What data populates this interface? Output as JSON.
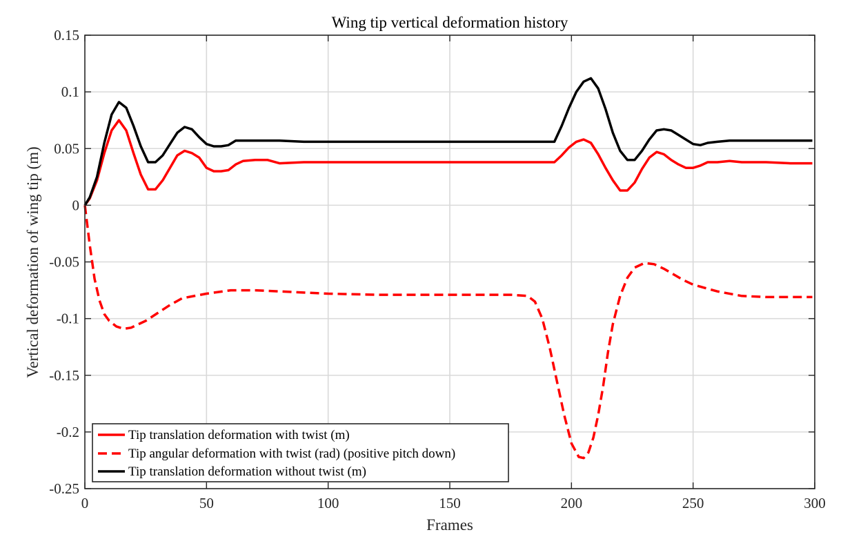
{
  "chart_data": {
    "type": "line",
    "title": "Wing tip vertical deformation history",
    "xlabel": "Frames",
    "ylabel": "Vertical deformation of wing tip (m)",
    "xlim": [
      0,
      300
    ],
    "ylim": [
      -0.25,
      0.15
    ],
    "xticks": [
      0,
      50,
      100,
      150,
      200,
      250,
      300
    ],
    "xtick_labels": [
      "0",
      "50",
      "100",
      "150",
      "200",
      "250",
      "300"
    ],
    "yticks": [
      0.15,
      0.1,
      0.05,
      0,
      -0.05,
      -0.1,
      -0.15,
      -0.2,
      -0.25
    ],
    "ytick_labels": [
      "0.15",
      "0.1",
      "0.05",
      "0",
      "-0.05",
      "-0.1",
      "-0.15",
      "-0.2",
      "-0.25"
    ],
    "grid": true,
    "legend_position": "bottom-left",
    "series": [
      {
        "name": "Tip translation deformation with twist (m)",
        "color": "#ff0000",
        "style": "solid",
        "x": [
          0,
          2,
          5,
          8,
          11,
          14,
          17,
          20,
          23,
          26,
          29,
          32,
          35,
          38,
          41,
          44,
          47,
          50,
          53,
          56,
          59,
          62,
          65,
          70,
          75,
          80,
          90,
          100,
          120,
          150,
          180,
          193,
          196,
          199,
          202,
          205,
          208,
          211,
          214,
          217,
          220,
          223,
          226,
          229,
          232,
          235,
          238,
          241,
          244,
          247,
          250,
          253,
          256,
          260,
          265,
          270,
          280,
          290,
          299
        ],
        "y": [
          0,
          0.006,
          0.022,
          0.046,
          0.066,
          0.075,
          0.066,
          0.046,
          0.027,
          0.014,
          0.014,
          0.022,
          0.033,
          0.044,
          0.048,
          0.046,
          0.042,
          0.033,
          0.03,
          0.03,
          0.031,
          0.036,
          0.039,
          0.04,
          0.04,
          0.037,
          0.038,
          0.038,
          0.038,
          0.038,
          0.038,
          0.038,
          0.044,
          0.051,
          0.056,
          0.058,
          0.055,
          0.045,
          0.033,
          0.022,
          0.013,
          0.013,
          0.02,
          0.032,
          0.042,
          0.047,
          0.045,
          0.04,
          0.036,
          0.033,
          0.033,
          0.035,
          0.038,
          0.038,
          0.039,
          0.038,
          0.038,
          0.037,
          0.037
        ]
      },
      {
        "name": "Tip angular deformation with twist (rad) (positive pitch down)",
        "color": "#ff0000",
        "style": "dashed",
        "x": [
          0,
          2,
          4,
          6,
          8,
          10,
          13,
          16,
          19,
          22,
          25,
          30,
          35,
          40,
          50,
          60,
          70,
          80,
          100,
          120,
          150,
          175,
          182,
          185,
          188,
          191,
          194,
          197,
          200,
          203,
          205,
          207,
          209,
          211,
          213,
          215,
          217,
          220,
          223,
          226,
          230,
          234,
          238,
          242,
          246,
          250,
          260,
          270,
          280,
          290,
          299
        ],
        "y": [
          0,
          -0.035,
          -0.065,
          -0.084,
          -0.096,
          -0.102,
          -0.107,
          -0.109,
          -0.108,
          -0.105,
          -0.102,
          -0.095,
          -0.088,
          -0.082,
          -0.078,
          -0.075,
          -0.075,
          -0.076,
          -0.078,
          -0.079,
          -0.079,
          -0.079,
          -0.08,
          -0.085,
          -0.1,
          -0.125,
          -0.155,
          -0.185,
          -0.21,
          -0.222,
          -0.223,
          -0.218,
          -0.205,
          -0.185,
          -0.16,
          -0.13,
          -0.105,
          -0.08,
          -0.064,
          -0.055,
          -0.051,
          -0.052,
          -0.056,
          -0.061,
          -0.066,
          -0.07,
          -0.076,
          -0.08,
          -0.081,
          -0.081,
          -0.081
        ]
      },
      {
        "name": "Tip translation deformation without twist (m)",
        "color": "#000000",
        "style": "solid",
        "x": [
          0,
          2,
          5,
          8,
          11,
          14,
          17,
          20,
          23,
          26,
          29,
          32,
          35,
          38,
          41,
          44,
          47,
          50,
          53,
          56,
          59,
          62,
          65,
          70,
          75,
          80,
          90,
          100,
          120,
          150,
          180,
          193,
          196,
          199,
          202,
          205,
          208,
          211,
          214,
          217,
          220,
          223,
          226,
          229,
          232,
          235,
          238,
          241,
          244,
          247,
          250,
          253,
          256,
          260,
          265,
          270,
          280,
          290,
          299
        ],
        "y": [
          0,
          0.007,
          0.025,
          0.055,
          0.08,
          0.091,
          0.086,
          0.07,
          0.052,
          0.038,
          0.038,
          0.044,
          0.054,
          0.064,
          0.069,
          0.067,
          0.06,
          0.054,
          0.052,
          0.052,
          0.053,
          0.057,
          0.057,
          0.057,
          0.057,
          0.057,
          0.056,
          0.056,
          0.056,
          0.056,
          0.056,
          0.056,
          0.07,
          0.086,
          0.1,
          0.109,
          0.112,
          0.103,
          0.085,
          0.064,
          0.048,
          0.04,
          0.04,
          0.048,
          0.058,
          0.066,
          0.067,
          0.066,
          0.062,
          0.058,
          0.054,
          0.053,
          0.055,
          0.056,
          0.057,
          0.057,
          0.057,
          0.057,
          0.057
        ]
      }
    ]
  }
}
